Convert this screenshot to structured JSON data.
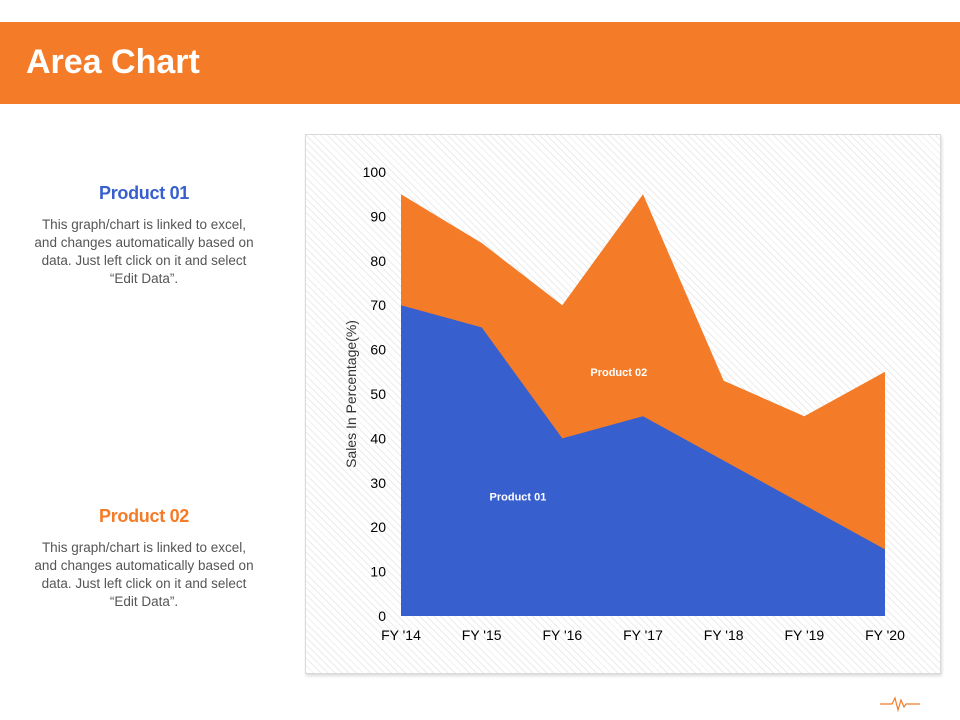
{
  "header": {
    "title": "Area Chart"
  },
  "left_panel": {
    "product1": {
      "title": "Product 01",
      "description": "This graph/chart is linked to excel, and changes automatically based on data. Just left click on it and select “Edit Data”."
    },
    "product2": {
      "title": "Product 02",
      "description": "This graph/chart is linked to excel, and changes automatically based on data. Just left click on it and select “Edit Data”."
    }
  },
  "colors": {
    "accent": "#f47c28",
    "product1": "#375fcd",
    "product2": "#f47c28"
  },
  "chart_data": {
    "type": "area",
    "stacked": false,
    "categories": [
      "FY '14",
      "FY '15",
      "FY '16",
      "FY '17",
      "FY '18",
      "FY '19",
      "FY '20"
    ],
    "series": [
      {
        "name": "Product 02",
        "values": [
          95,
          84,
          70,
          95,
          53,
          45,
          55
        ],
        "color": "#f47c28"
      },
      {
        "name": "Product 01",
        "values": [
          70,
          65,
          40,
          45,
          35,
          25,
          15
        ],
        "color": "#375fcd"
      }
    ],
    "ylabel": "Sales In Percentage(%)",
    "ylim": [
      0,
      100
    ],
    "yticks": [
      0,
      10,
      20,
      30,
      40,
      50,
      60,
      70,
      80,
      90,
      100
    ],
    "grid": false,
    "legend": "none",
    "series_labels_on_chart": true
  }
}
